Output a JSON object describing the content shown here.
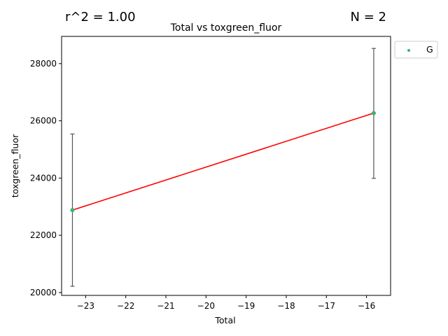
{
  "chart_data": {
    "type": "scatter",
    "title": "Total vs toxgreen_fluor",
    "xlabel": "Total",
    "ylabel": "toxgreen_fluor",
    "annotations": {
      "r2": "r^2 = 1.00",
      "n": "N = 2"
    },
    "xlim": [
      -23.6,
      -15.4
    ],
    "ylim": [
      19900,
      28950
    ],
    "xticks": [
      -23,
      -22,
      -21,
      -20,
      -19,
      -18,
      -17,
      -16
    ],
    "xtick_labels": [
      "−23",
      "−22",
      "−21",
      "−20",
      "−19",
      "−18",
      "−17",
      "−16"
    ],
    "yticks": [
      20000,
      22000,
      24000,
      26000,
      28000
    ],
    "ytick_labels": [
      "20000",
      "22000",
      "24000",
      "26000",
      "28000"
    ],
    "series": [
      {
        "name": "G",
        "color": "#3cb371",
        "points": [
          {
            "x": -23.33,
            "y": 22880,
            "err_low": 20220,
            "err_high": 25540
          },
          {
            "x": -15.82,
            "y": 26270,
            "err_low": 23990,
            "err_high": 28530
          }
        ]
      }
    ],
    "fit_line": {
      "color": "#ff0000",
      "x": [
        -23.33,
        -15.82
      ],
      "y": [
        22880,
        26270
      ]
    },
    "errorbar_color": "#555555",
    "legend": {
      "placement": "outside-top-right"
    },
    "grid": false
  }
}
